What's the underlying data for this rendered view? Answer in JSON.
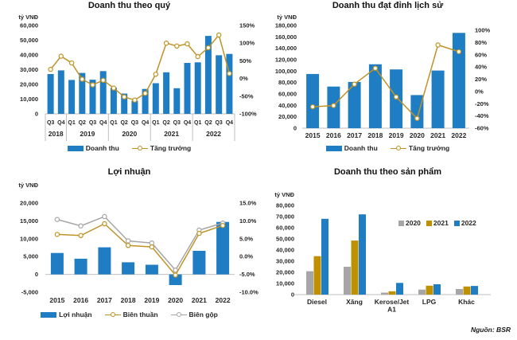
{
  "source_note": "Nguồn: BSR",
  "colors": {
    "bar_blue": "#1f7dc4",
    "bar_gold": "#bf9000",
    "bar_gray": "#a6a6a6",
    "line_gold": "#bf9327",
    "line_gray": "#a6a6a6",
    "axis_text": "#262626",
    "axis_line": "#bfbfbf"
  },
  "chart_data": [
    {
      "type": "bar+line",
      "title": "Doanh thu theo quý",
      "unit_label": "tỷ VNĐ",
      "legend_position": "bottom",
      "categories_quarters": [
        "Q3",
        "Q4",
        "Q1",
        "Q2",
        "Q3",
        "Q4",
        "Q1",
        "Q2",
        "Q3",
        "Q4",
        "Q1",
        "Q2",
        "Q3",
        "Q4",
        "Q1",
        "Q2",
        "Q3",
        "Q4"
      ],
      "year_groups": [
        {
          "label": "2018",
          "count": 2
        },
        {
          "label": "2019",
          "count": 4
        },
        {
          "label": "2020",
          "count": 4
        },
        {
          "label": "2021",
          "count": 4
        },
        {
          "label": "2022",
          "count": 4
        }
      ],
      "bar_series": {
        "name": "Doanh thu",
        "color": "#1f7dc4",
        "axis": "left",
        "values": [
          27000,
          29500,
          23000,
          27800,
          23200,
          29000,
          17800,
          13800,
          8900,
          16900,
          20800,
          28200,
          17400,
          34600,
          35000,
          52900,
          39800,
          40700
        ]
      },
      "line_series": {
        "name": "Tăng trưởng",
        "color": "#bf9327",
        "axis": "right",
        "values": [
          26,
          63,
          44,
          -2,
          -18,
          -5,
          -27,
          -52,
          -61,
          -42,
          12,
          100,
          92,
          98,
          62,
          87,
          123,
          14
        ]
      },
      "y_left": {
        "min": 0,
        "max": 60000,
        "ticks": [
          "60,000",
          "50,000",
          "40,000",
          "30,000",
          "20,000",
          "10,000",
          "0"
        ]
      },
      "y_right": {
        "min": -100,
        "max": 150,
        "ticks": [
          "150%",
          "100%",
          "50%",
          "0%",
          "-50%",
          "-100%"
        ]
      },
      "grid": false
    },
    {
      "type": "bar+line",
      "title": "Doanh thu đạt đỉnh lịch sử",
      "unit_label": "tỷ VNĐ",
      "legend_position": "bottom",
      "categories": [
        "2015",
        "2016",
        "2017",
        "2018",
        "2019",
        "2020",
        "2021",
        "2022"
      ],
      "bar_series": {
        "name": "Doanh thu",
        "color": "#1f7dc4",
        "axis": "left",
        "values": [
          95000,
          73000,
          81000,
          112000,
          103000,
          58000,
          101000,
          167000
        ]
      },
      "line_series": {
        "name": "Tăng trưởng",
        "color": "#bf9327",
        "axis": "right",
        "values": [
          -25,
          -23,
          12,
          38,
          -9,
          -44,
          76,
          65
        ]
      },
      "y_left": {
        "min": 0,
        "max": 180000,
        "ticks": [
          "180,000",
          "160,000",
          "140,000",
          "120,000",
          "100,000",
          "80,000",
          "60,000",
          "40,000",
          "20,000",
          "0"
        ]
      },
      "y_right": {
        "min": -60,
        "max": 100,
        "ticks": [
          "100%",
          "80%",
          "60%",
          "40%",
          "20%",
          "0%",
          "-20%",
          "-40%",
          "-60%"
        ]
      },
      "grid": false
    },
    {
      "type": "bar+2lines",
      "title": "Lợi nhuận",
      "unit_label": "tỷ VNĐ",
      "legend_position": "bottom",
      "categories": [
        "2015",
        "2016",
        "2017",
        "2018",
        "2019",
        "2020",
        "2021",
        "2022"
      ],
      "bar_series": {
        "name": "Lợi nhuận",
        "color": "#1f7dc4",
        "axis": "left",
        "values": [
          6000,
          4400,
          7600,
          3400,
          2700,
          -3000,
          6600,
          14700
        ]
      },
      "line_series": [
        {
          "name": "Biên thuần",
          "color": "#bf9327",
          "axis": "right",
          "values": [
            6.2,
            5.9,
            9.2,
            3.1,
            2.7,
            -5.2,
            6.5,
            8.7
          ]
        },
        {
          "name": "Biên gộp",
          "color": "#a6a6a6",
          "axis": "right",
          "values": [
            10.4,
            8.6,
            11.2,
            4.4,
            3.8,
            -3.8,
            7.4,
            9.4
          ]
        }
      ],
      "y_left": {
        "min": -5000,
        "max": 20000,
        "ticks": [
          "20,000",
          "15,000",
          "10,000",
          "5,000",
          "0",
          "-5,000"
        ]
      },
      "y_right": {
        "min": -10,
        "max": 15,
        "ticks": [
          "15.0%",
          "10.0%",
          "5.0%",
          "0.0%",
          "-5.0%",
          "-10.0%"
        ]
      },
      "grid": false
    },
    {
      "type": "grouped-bar",
      "title": "Doanh thu theo sản phẩm",
      "unit_label": "tỷ VNĐ",
      "legend_position": "inside-top-right",
      "categories": [
        "Diesel",
        "Xăng",
        "Kerose/Jet A1",
        "LPG",
        "Khác"
      ],
      "series": [
        {
          "name": "2020",
          "color": "#a6a6a6",
          "values": [
            21000,
            25000,
            1800,
            4500,
            5000
          ]
        },
        {
          "name": "2021",
          "color": "#bf9000",
          "values": [
            34500,
            48500,
            3000,
            8000,
            7300
          ]
        },
        {
          "name": "2022",
          "color": "#1f7dc4",
          "values": [
            68000,
            72000,
            10500,
            9300,
            7800
          ]
        }
      ],
      "y_left": {
        "min": 0,
        "max": 80000,
        "ticks": [
          "80,000",
          "70,000",
          "60,000",
          "50,000",
          "40,000",
          "30,000",
          "20,000",
          "10,000",
          "0"
        ]
      },
      "grid": false
    }
  ]
}
